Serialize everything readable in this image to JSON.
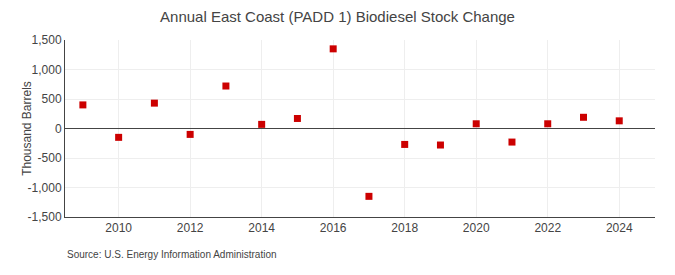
{
  "chart_data": {
    "type": "scatter",
    "title": "Annual East Coast (PADD 1) Biodiesel Stock Change",
    "ylabel": "Thousand Barrels",
    "annotations": [
      "Source: U.S. Energy Information Administration"
    ],
    "x": [
      2009,
      2010,
      2011,
      2012,
      2013,
      2014,
      2015,
      2016,
      2017,
      2018,
      2019,
      2020,
      2021,
      2022,
      2023,
      2024
    ],
    "values": [
      400,
      -150,
      430,
      -100,
      720,
      70,
      170,
      1350,
      -1150,
      -270,
      -280,
      80,
      -230,
      80,
      190,
      130
    ],
    "color": "#cc0000",
    "marker": "square",
    "xlim": [
      2008.5,
      2025.0
    ],
    "xticks": [
      2010,
      2012,
      2014,
      2016,
      2018,
      2020,
      2022,
      2024
    ],
    "ylim": [
      -1500,
      1500
    ],
    "yticks": [
      {
        "value": -1500,
        "label": "-1,500"
      },
      {
        "value": -1000,
        "label": "-1,000"
      },
      -500,
      0,
      500,
      {
        "value": 1000,
        "label": "1,000"
      },
      {
        "value": 1500,
        "label": "1,500"
      }
    ],
    "grid": true
  }
}
